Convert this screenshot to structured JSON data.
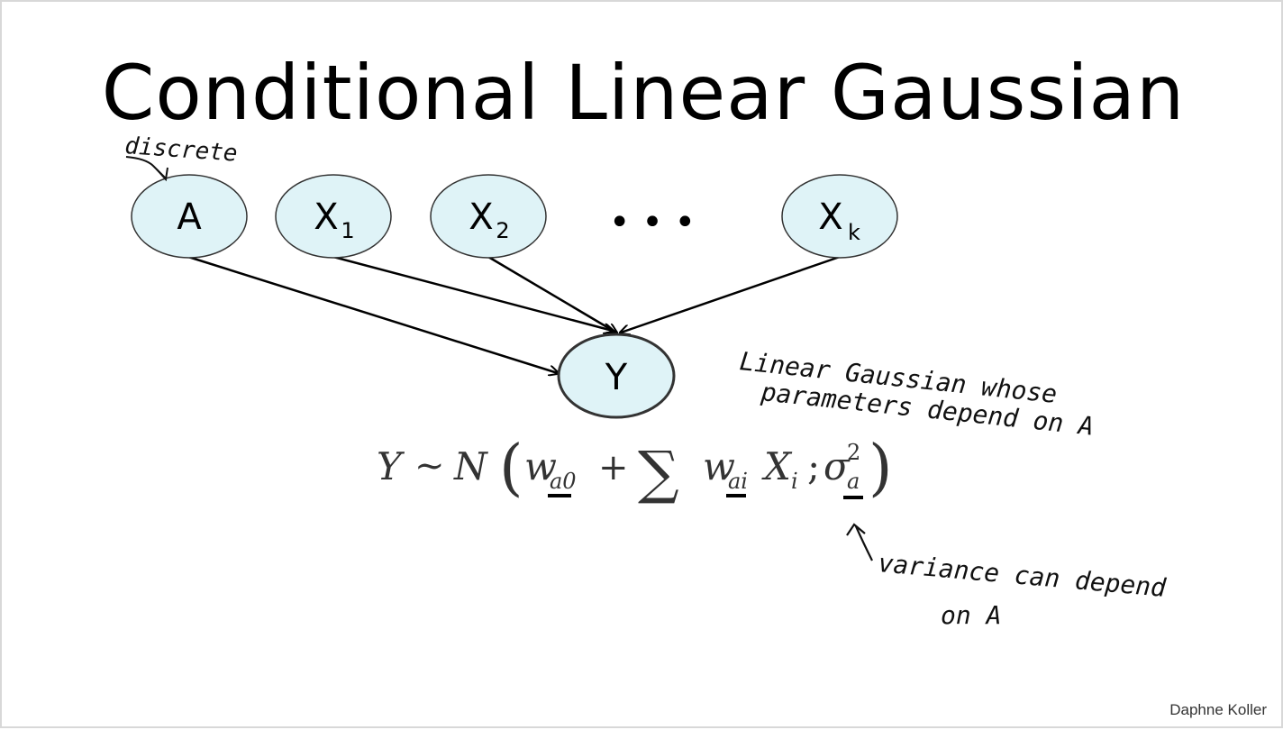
{
  "slide": {
    "title": "Conditional Linear Gaussian",
    "author": "Daphne Koller"
  },
  "nodes": {
    "a": {
      "label": "A"
    },
    "x1": {
      "label": "X",
      "sub": "1"
    },
    "x2": {
      "label": "X",
      "sub": "2"
    },
    "ellipsis": "• • •",
    "xk": {
      "label": "X",
      "sub": "k"
    },
    "y": {
      "label": "Y"
    }
  },
  "annotations": {
    "discrete": "discrete",
    "linear_line1": "Linear Gaussian whose",
    "linear_line2": "parameters depend on A",
    "variance_line1": "variance can depend",
    "variance_line2": "on A"
  },
  "formula": {
    "lhs": "Y",
    "tilde": "~",
    "dist": "N",
    "open": "(",
    "w": "w",
    "sub_a0": "a0",
    "plus": "+",
    "sum": "∑",
    "sub_ai": "ai",
    "x": "X",
    "sub_i": "i",
    "semi": ";",
    "sigma": "σ",
    "sup_2": "2",
    "sub_a": "a",
    "close": ")"
  },
  "colors": {
    "node_fill": "#dff3f7",
    "node_stroke": "#333333",
    "edge": "#000000"
  }
}
